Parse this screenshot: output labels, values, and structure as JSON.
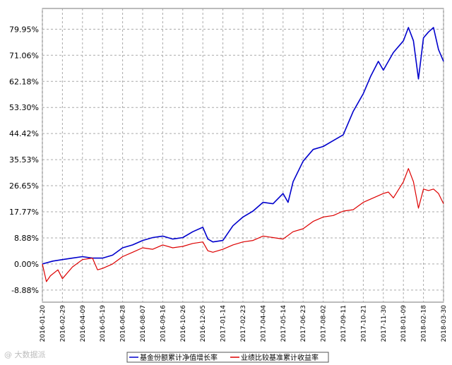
{
  "watermark": "@ 大数据派",
  "chart_data": {
    "type": "line",
    "y_ticks": [
      "79.95%",
      "71.06%",
      "62.18%",
      "53.30%",
      "44.42%",
      "35.53%",
      "26.65%",
      "17.77%",
      "8.88%",
      "0.00%",
      "-8.88%"
    ],
    "y_tick_values": [
      79.95,
      71.06,
      62.18,
      53.3,
      44.42,
      35.53,
      26.65,
      17.77,
      8.88,
      0.0,
      -8.88
    ],
    "x_ticks": [
      "2016-01-20",
      "2016-02-29",
      "2016-04-09",
      "2016-05-19",
      "2016-06-28",
      "2016-08-07",
      "2016-09-16",
      "2016-10-26",
      "2016-12-05",
      "2017-01-14",
      "2017-02-23",
      "2017-04-04",
      "2017-05-14",
      "2017-06-23",
      "2017-08-02",
      "2017-09-11",
      "2017-10-21",
      "2017-11-30",
      "2018-01-09",
      "2018-02-18",
      "2018-03-30"
    ],
    "ylim": [
      -13,
      87
    ],
    "grid": true,
    "legend_position": "bottom",
    "series": [
      {
        "name": "基金份额累计净值增长率",
        "color": "#0000cc",
        "x": [
          "2016-01-20",
          "2016-02-10",
          "2016-02-29",
          "2016-03-20",
          "2016-04-09",
          "2016-04-29",
          "2016-05-19",
          "2016-06-08",
          "2016-06-28",
          "2016-07-18",
          "2016-08-07",
          "2016-08-27",
          "2016-09-16",
          "2016-10-06",
          "2016-10-26",
          "2016-11-15",
          "2016-12-05",
          "2016-12-15",
          "2016-12-25",
          "2017-01-14",
          "2017-02-03",
          "2017-02-23",
          "2017-03-15",
          "2017-04-04",
          "2017-04-24",
          "2017-05-14",
          "2017-05-24",
          "2017-06-03",
          "2017-06-23",
          "2017-07-13",
          "2017-08-02",
          "2017-08-22",
          "2017-09-11",
          "2017-10-01",
          "2017-10-21",
          "2017-11-05",
          "2017-11-20",
          "2017-11-30",
          "2017-12-10",
          "2017-12-20",
          "2018-01-09",
          "2018-01-19",
          "2018-01-29",
          "2018-02-08",
          "2018-02-18",
          "2018-02-28",
          "2018-03-10",
          "2018-03-20",
          "2018-03-30"
        ],
        "values": [
          0.0,
          1.0,
          1.5,
          2.0,
          2.5,
          2.0,
          2.0,
          3.0,
          5.5,
          6.5,
          8.0,
          9.0,
          9.5,
          8.5,
          9.0,
          11.0,
          12.5,
          8.5,
          7.5,
          8.0,
          13.0,
          16.0,
          18.0,
          21.0,
          20.5,
          24.0,
          21.0,
          28.0,
          35.0,
          39.0,
          40.0,
          42.0,
          44.0,
          52.0,
          58.0,
          64.0,
          69.0,
          66.0,
          69.0,
          72.0,
          76.0,
          80.5,
          76.0,
          63.0,
          77.0,
          79.0,
          80.5,
          73.0,
          69.0
        ]
      },
      {
        "name": "业绩比较基准累计收益率",
        "color": "#dd0000",
        "x": [
          "2016-01-20",
          "2016-01-28",
          "2016-02-05",
          "2016-02-20",
          "2016-02-29",
          "2016-03-20",
          "2016-04-09",
          "2016-04-29",
          "2016-05-09",
          "2016-05-19",
          "2016-06-08",
          "2016-06-28",
          "2016-07-18",
          "2016-08-07",
          "2016-08-27",
          "2016-09-16",
          "2016-10-06",
          "2016-10-26",
          "2016-11-15",
          "2016-12-05",
          "2016-12-15",
          "2016-12-25",
          "2017-01-14",
          "2017-02-03",
          "2017-02-23",
          "2017-03-15",
          "2017-04-04",
          "2017-04-24",
          "2017-05-14",
          "2017-06-03",
          "2017-06-23",
          "2017-07-13",
          "2017-08-02",
          "2017-08-22",
          "2017-09-11",
          "2017-10-01",
          "2017-10-21",
          "2017-11-10",
          "2017-11-30",
          "2017-12-10",
          "2017-12-20",
          "2018-01-09",
          "2018-01-19",
          "2018-01-29",
          "2018-02-08",
          "2018-02-18",
          "2018-02-28",
          "2018-03-10",
          "2018-03-20",
          "2018-03-30"
        ],
        "values": [
          0.0,
          -6.0,
          -4.0,
          -2.0,
          -5.0,
          -1.0,
          1.5,
          2.0,
          -2.0,
          -1.5,
          0.0,
          2.5,
          4.0,
          5.5,
          5.0,
          6.5,
          5.5,
          6.0,
          7.0,
          7.5,
          4.5,
          4.0,
          5.0,
          6.5,
          7.5,
          8.0,
          9.5,
          9.0,
          8.5,
          11.0,
          12.0,
          14.5,
          16.0,
          16.5,
          18.0,
          18.5,
          21.0,
          22.5,
          24.0,
          24.5,
          22.5,
          28.0,
          32.5,
          28.0,
          19.0,
          25.5,
          25.0,
          25.5,
          24.0,
          20.5
        ]
      }
    ]
  }
}
